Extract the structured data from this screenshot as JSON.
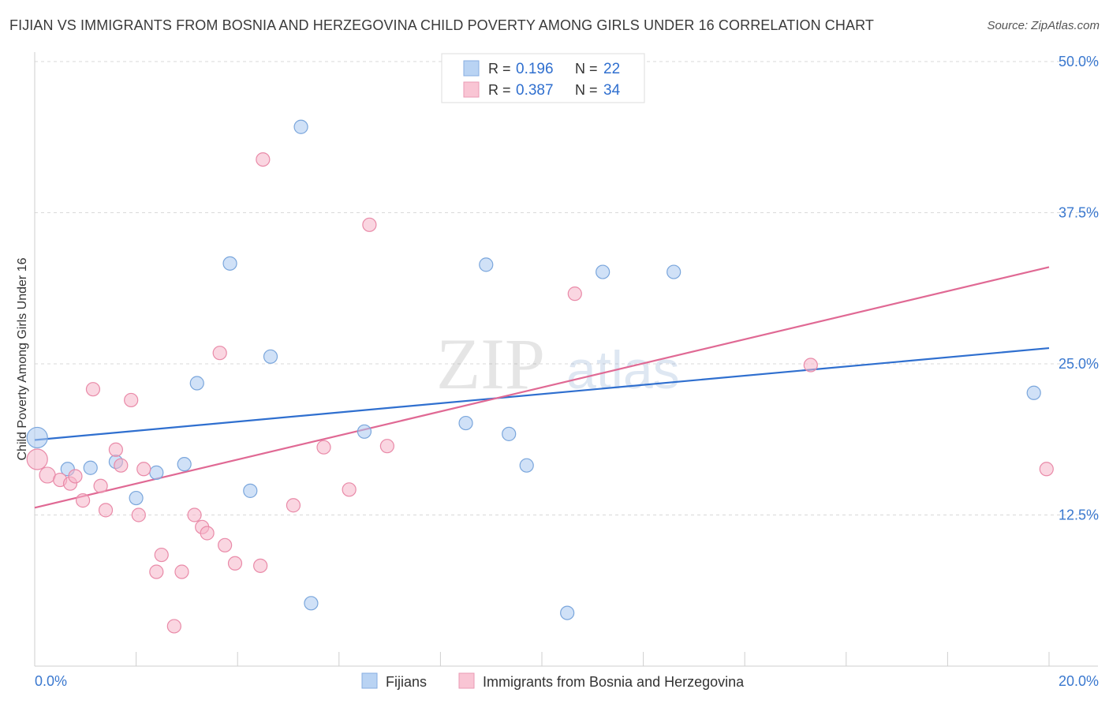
{
  "title": "FIJIAN VS IMMIGRANTS FROM BOSNIA AND HERZEGOVINA CHILD POVERTY AMONG GIRLS UNDER 16 CORRELATION CHART",
  "source": "Source: ZipAtlas.com",
  "watermark": {
    "zip": "ZIP",
    "atlas": "atlas"
  },
  "chart_data": {
    "type": "scatter",
    "xlabel": "",
    "ylabel": "Child Poverty Among Girls Under 16",
    "xlim": [
      0,
      20
    ],
    "ylim": [
      0,
      50
    ],
    "x_tick_labels": [
      "0.0%",
      "20.0%"
    ],
    "y_ticks": [
      12.5,
      25.0,
      37.5,
      50.0
    ],
    "y_tick_labels": [
      "12.5%",
      "25.0%",
      "37.5%",
      "50.0%"
    ],
    "grid": "horizontal dashed",
    "legend_position": "top-center",
    "legend": [
      {
        "r_label": "R =",
        "r_value": "0.196",
        "n_label": "N =",
        "n_value": "22"
      },
      {
        "r_label": "R =",
        "r_value": "0.387",
        "n_label": "N =",
        "n_value": "34"
      }
    ],
    "bottom_legend": [
      "Fijians",
      "Immigrants from Bosnia and Herzegovina"
    ],
    "series": [
      {
        "name": "Fijians",
        "color": "#a9c8f0",
        "stroke": "#7aa6dc",
        "line_color": "#2f6fcf",
        "trend": {
          "x": [
            0,
            20
          ],
          "y": [
            18.7,
            26.3
          ]
        },
        "points": [
          {
            "x": 0.05,
            "y": 18.9,
            "big": true
          },
          {
            "x": 0.65,
            "y": 16.3
          },
          {
            "x": 1.1,
            "y": 16.4
          },
          {
            "x": 1.6,
            "y": 16.9
          },
          {
            "x": 2.0,
            "y": 13.9
          },
          {
            "x": 2.4,
            "y": 16.0
          },
          {
            "x": 2.95,
            "y": 16.7
          },
          {
            "x": 3.2,
            "y": 23.4
          },
          {
            "x": 3.85,
            "y": 33.3
          },
          {
            "x": 4.25,
            "y": 14.5
          },
          {
            "x": 4.65,
            "y": 25.6
          },
          {
            "x": 5.25,
            "y": 44.6
          },
          {
            "x": 5.45,
            "y": 5.2
          },
          {
            "x": 6.5,
            "y": 19.4
          },
          {
            "x": 8.5,
            "y": 20.1
          },
          {
            "x": 8.9,
            "y": 33.2
          },
          {
            "x": 9.35,
            "y": 19.2
          },
          {
            "x": 9.7,
            "y": 16.6
          },
          {
            "x": 10.5,
            "y": 4.4
          },
          {
            "x": 11.2,
            "y": 32.6
          },
          {
            "x": 12.6,
            "y": 32.6
          },
          {
            "x": 19.7,
            "y": 22.6
          }
        ]
      },
      {
        "name": "Immigrants from Bosnia and Herzegovina",
        "color": "#f6b5c8",
        "stroke": "#e98aa8",
        "line_color": "#e06994",
        "trend": {
          "x": [
            0,
            20
          ],
          "y": [
            13.1,
            33.0
          ]
        },
        "points": [
          {
            "x": 0.05,
            "y": 17.1,
            "big": true
          },
          {
            "x": 0.25,
            "y": 15.8,
            "mid": true
          },
          {
            "x": 0.5,
            "y": 15.4
          },
          {
            "x": 0.7,
            "y": 15.1
          },
          {
            "x": 0.8,
            "y": 15.7
          },
          {
            "x": 0.95,
            "y": 13.7
          },
          {
            "x": 1.15,
            "y": 22.9
          },
          {
            "x": 1.3,
            "y": 14.9
          },
          {
            "x": 1.4,
            "y": 12.9
          },
          {
            "x": 1.6,
            "y": 17.9
          },
          {
            "x": 1.7,
            "y": 16.6
          },
          {
            "x": 1.9,
            "y": 22.0
          },
          {
            "x": 2.05,
            "y": 12.5
          },
          {
            "x": 2.15,
            "y": 16.3
          },
          {
            "x": 2.4,
            "y": 7.8
          },
          {
            "x": 2.5,
            "y": 9.2
          },
          {
            "x": 2.75,
            "y": 3.3
          },
          {
            "x": 2.9,
            "y": 7.8
          },
          {
            "x": 3.15,
            "y": 12.5
          },
          {
            "x": 3.3,
            "y": 11.5
          },
          {
            "x": 3.4,
            "y": 11.0
          },
          {
            "x": 3.65,
            "y": 25.9
          },
          {
            "x": 3.75,
            "y": 10.0
          },
          {
            "x": 3.95,
            "y": 8.5
          },
          {
            "x": 4.45,
            "y": 8.3
          },
          {
            "x": 4.5,
            "y": 41.9
          },
          {
            "x": 5.1,
            "y": 13.3
          },
          {
            "x": 5.7,
            "y": 18.1
          },
          {
            "x": 6.2,
            "y": 14.6
          },
          {
            "x": 6.6,
            "y": 36.5
          },
          {
            "x": 6.95,
            "y": 18.2
          },
          {
            "x": 10.65,
            "y": 30.8
          },
          {
            "x": 15.3,
            "y": 24.9
          },
          {
            "x": 19.95,
            "y": 16.3
          }
        ]
      }
    ]
  }
}
